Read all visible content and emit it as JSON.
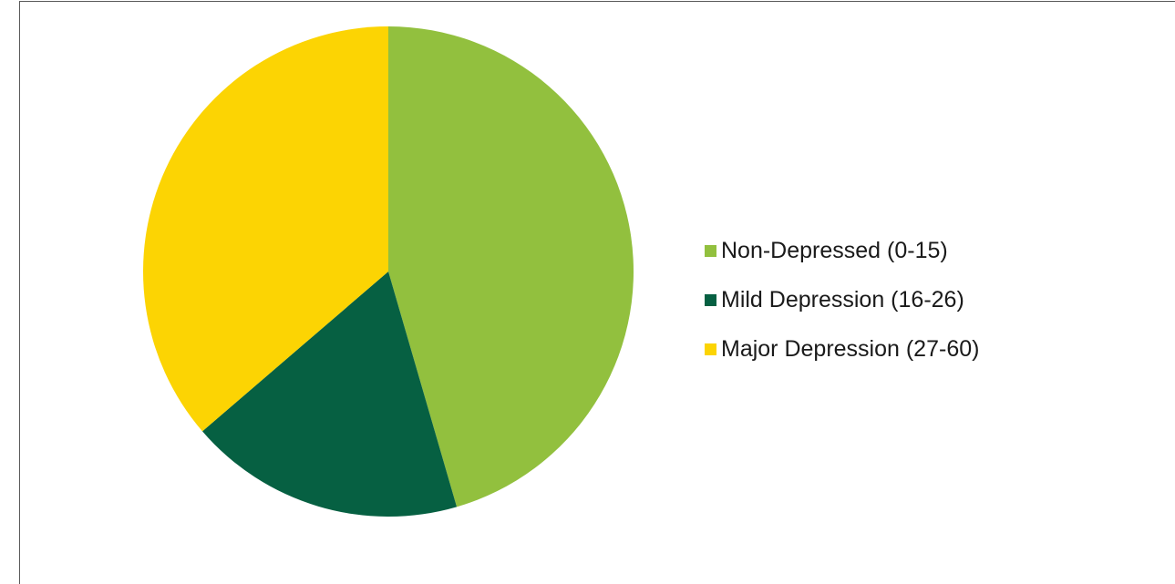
{
  "chart_data": {
    "type": "pie",
    "title": "",
    "legend_position": "right",
    "series": [
      {
        "name": "Non-Depressed (0-15)",
        "value": 45.5,
        "color": "#92c03e"
      },
      {
        "name": "Mild Depression (16-26)",
        "value": 18.2,
        "color": "#066042"
      },
      {
        "name": "Major Depression (27-60)",
        "value": 36.3,
        "color": "#fcd403"
      }
    ]
  }
}
